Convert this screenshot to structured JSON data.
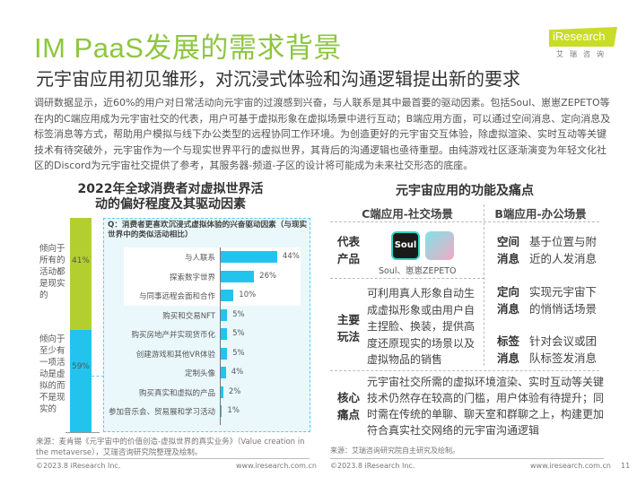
{
  "header": {
    "title": "IM PaaS发展的需求背景",
    "subtitle": "元宇宙应用初见雏形，对沉浸式体验和沟通逻辑提出新的要求",
    "logo": "iResearch",
    "logo_sub": "艾瑞咨询"
  },
  "intro": "调研数据显示，近60%的用户对日常活动向元宇宙的过渡感到兴奋，与人联系是其中最首要的驱动因素。包括Soul、崽崽ZEPETO等在内的C端应用成为元宇宙社交的代表，用户可基于虚拟形象在虚拟场景中进行互动；B端应用方面，可以通过空间消息、定向消息及标签消息等方式，帮助用户模拟与线下办公类型的远程协同工作环境。为创造更好的元宇宙交互体验，除虚拟渲染、实时互动等关键技术有待突破外，元宇宙作为一个与现实世界平行的虚拟世界，其背后的沟通逻辑也亟待重塑。由纯游戏社区逐渐演变为年轻文化社区的Discord为元宇宙社交提供了参考，其服务器-频道-子区的设计将可能成为未来社交形态的底座。",
  "chart_data": [
    {
      "type": "bar",
      "orientation": "stacked-vertical",
      "title": "2022年全球消费者对虚拟世界活动的偏好程度及其驱动因素",
      "categories": [
        "倾向于所有的活动都是现实的",
        "倾向于至少有一项活动是虚拟的而不是现实的"
      ],
      "values": [
        41,
        59
      ],
      "value_labels": [
        "41%",
        "59%"
      ],
      "colors": [
        "#b3cf2f",
        "#22c4ee"
      ]
    },
    {
      "type": "bar",
      "orientation": "horizontal",
      "title": "Q：消费者更喜欢沉浸式虚拟体验的兴奋驱动因素（与现实世界中的类似活动相比）",
      "categories": [
        "与人联系",
        "探索数字世界",
        "与同事远程会面和合作",
        "购买和交易NFT",
        "购买房地产并实现货币化",
        "创建游戏和其他VR体验",
        "定制头像",
        "购买真实和虚拟的产品",
        "参加音乐会、贸易展和学习活动"
      ],
      "values": [
        44,
        26,
        10,
        5,
        5,
        5,
        4,
        2,
        1
      ],
      "value_labels": [
        "44%",
        "26%",
        "10%",
        "5%",
        "5%",
        "5%",
        "4%",
        "2%",
        "1%"
      ],
      "color": "#22c4ee",
      "highlighted_top": 3
    }
  ],
  "left_source": "来源：麦肯锡《元宇宙中的价值创造-虚拟世界的真实业务》（Value creation in the metaverse），艾瑞咨询研究院整理及绘制。",
  "right": {
    "title": "元宇宙应用的功能及痛点",
    "c_header": "C端应用-社交场景",
    "b_header": "B端应用-办公场景",
    "rep_label": "代表产品",
    "rep_apps": [
      "Soul",
      "ZEPETO"
    ],
    "rep_caption": "Soul、崽崽ZEPETO",
    "play_label": "主要玩法",
    "play_text": "可利用真人形象自动生成虚拟形象或由用户自主捏脸、换装，提供高度还原现实的场景以及虚拟物品的销售",
    "b_items": [
      {
        "label": "空间消息",
        "text": "基于位置与附近的人发消息"
      },
      {
        "label": "定向消息",
        "text": "实现元宇宙下的悄悄话场景"
      },
      {
        "label": "标签消息",
        "text": "针对会议或团队标签发消息"
      }
    ],
    "pain_label": "核心痛点",
    "pain_text": "元宇宙社交所需的虚拟环境渲染、实时互动等关键技术仍然存在较高的门槛，用户体验有待提升；同时需在传统的单聊、聊天室和群聊之上，构建更加符合真实社交网络的元宇宙沟通逻辑",
    "source": "来源：艾瑞咨询研究院自主研究及绘制。"
  },
  "footer": {
    "copyright": "©2023.8 iResearch Inc.",
    "url": "www.iresearch.com.cn",
    "page": "11"
  }
}
